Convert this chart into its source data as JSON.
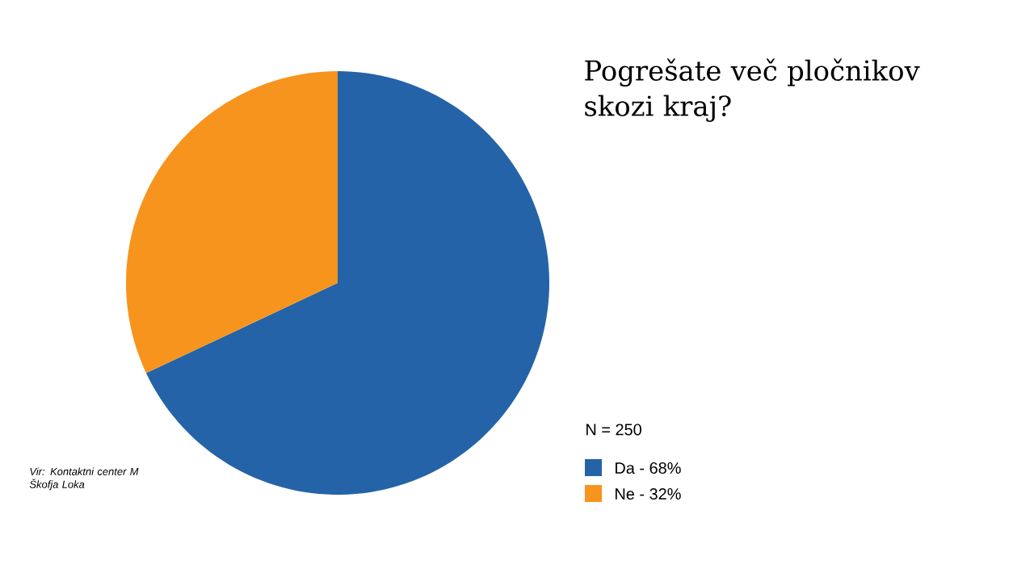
{
  "chart_data": {
    "type": "pie",
    "title": "Pogrešate več pločnikov skozi kraj?",
    "legend_title": "N = 250",
    "categories": [
      "Da - 68%",
      "Ne - 32%"
    ],
    "values": [
      68,
      32
    ],
    "colors": [
      "#2463a8",
      "#f7941d"
    ],
    "legend": "bottom right",
    "annotations": [
      "Vir: Kontaktni center M Škofja Loka"
    ]
  }
}
